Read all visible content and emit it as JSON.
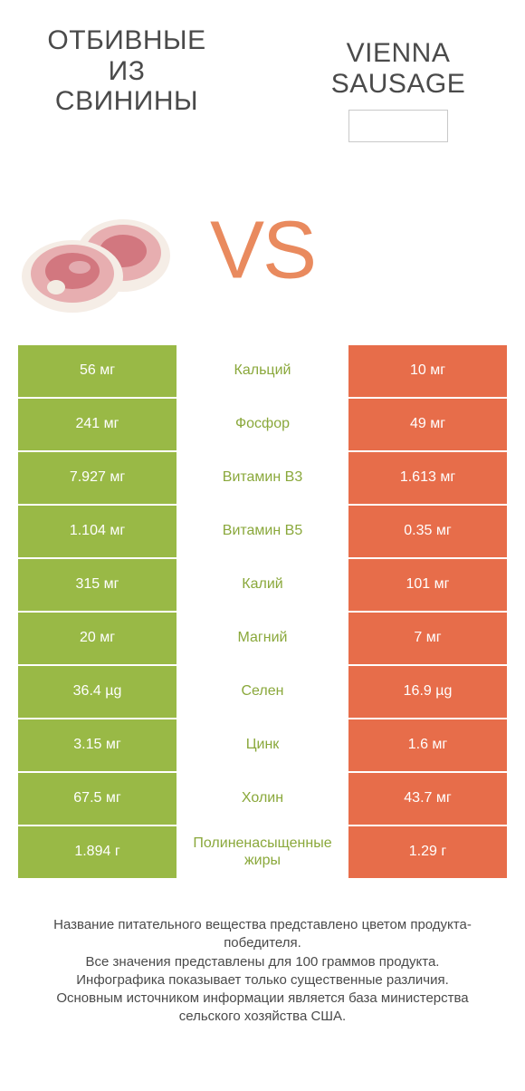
{
  "colors": {
    "green": "#99b946",
    "orange": "#e76d4a",
    "label_green": "#8aa83b",
    "vs": "#e98a5e",
    "row_gap_bg": "#ffffff"
  },
  "header": {
    "left_title": "ОТБИВНЫЕ ИЗ СВИНИНЫ",
    "right_title": "VIENNA SAUSAGE",
    "vs": "VS"
  },
  "rows": [
    {
      "left": "56 мг",
      "label": "Кальций",
      "right": "10 мг",
      "label_color": "green"
    },
    {
      "left": "241 мг",
      "label": "Фосфор",
      "right": "49 мг",
      "label_color": "green"
    },
    {
      "left": "7.927 мг",
      "label": "Витамин B3",
      "right": "1.613 мг",
      "label_color": "green"
    },
    {
      "left": "1.104 мг",
      "label": "Витамин B5",
      "right": "0.35 мг",
      "label_color": "green"
    },
    {
      "left": "315 мг",
      "label": "Калий",
      "right": "101 мг",
      "label_color": "green"
    },
    {
      "left": "20 мг",
      "label": "Магний",
      "right": "7 мг",
      "label_color": "green"
    },
    {
      "left": "36.4 µg",
      "label": "Селен",
      "right": "16.9 µg",
      "label_color": "green"
    },
    {
      "left": "3.15 мг",
      "label": "Цинк",
      "right": "1.6 мг",
      "label_color": "green"
    },
    {
      "left": "67.5 мг",
      "label": "Холин",
      "right": "43.7 мг",
      "label_color": "green"
    },
    {
      "left": "1.894 г",
      "label": "Полиненасыщенные жиры",
      "right": "1.29 г",
      "label_color": "green"
    }
  ],
  "footer": {
    "l1": "Название питательного вещества представлено цветом продукта-победителя.",
    "l2": "Все значения представлены для 100 граммов продукта.",
    "l3": "Инфографика показывает только существенные различия.",
    "l4": "Основным источником информации является база министерства сельского хозяйства США."
  },
  "chops_svg": {
    "meat_fill": "#e7aeb0",
    "meat_dark": "#d2777f",
    "fat_fill": "#f5ede6",
    "bone_fill": "#f3ece3"
  }
}
